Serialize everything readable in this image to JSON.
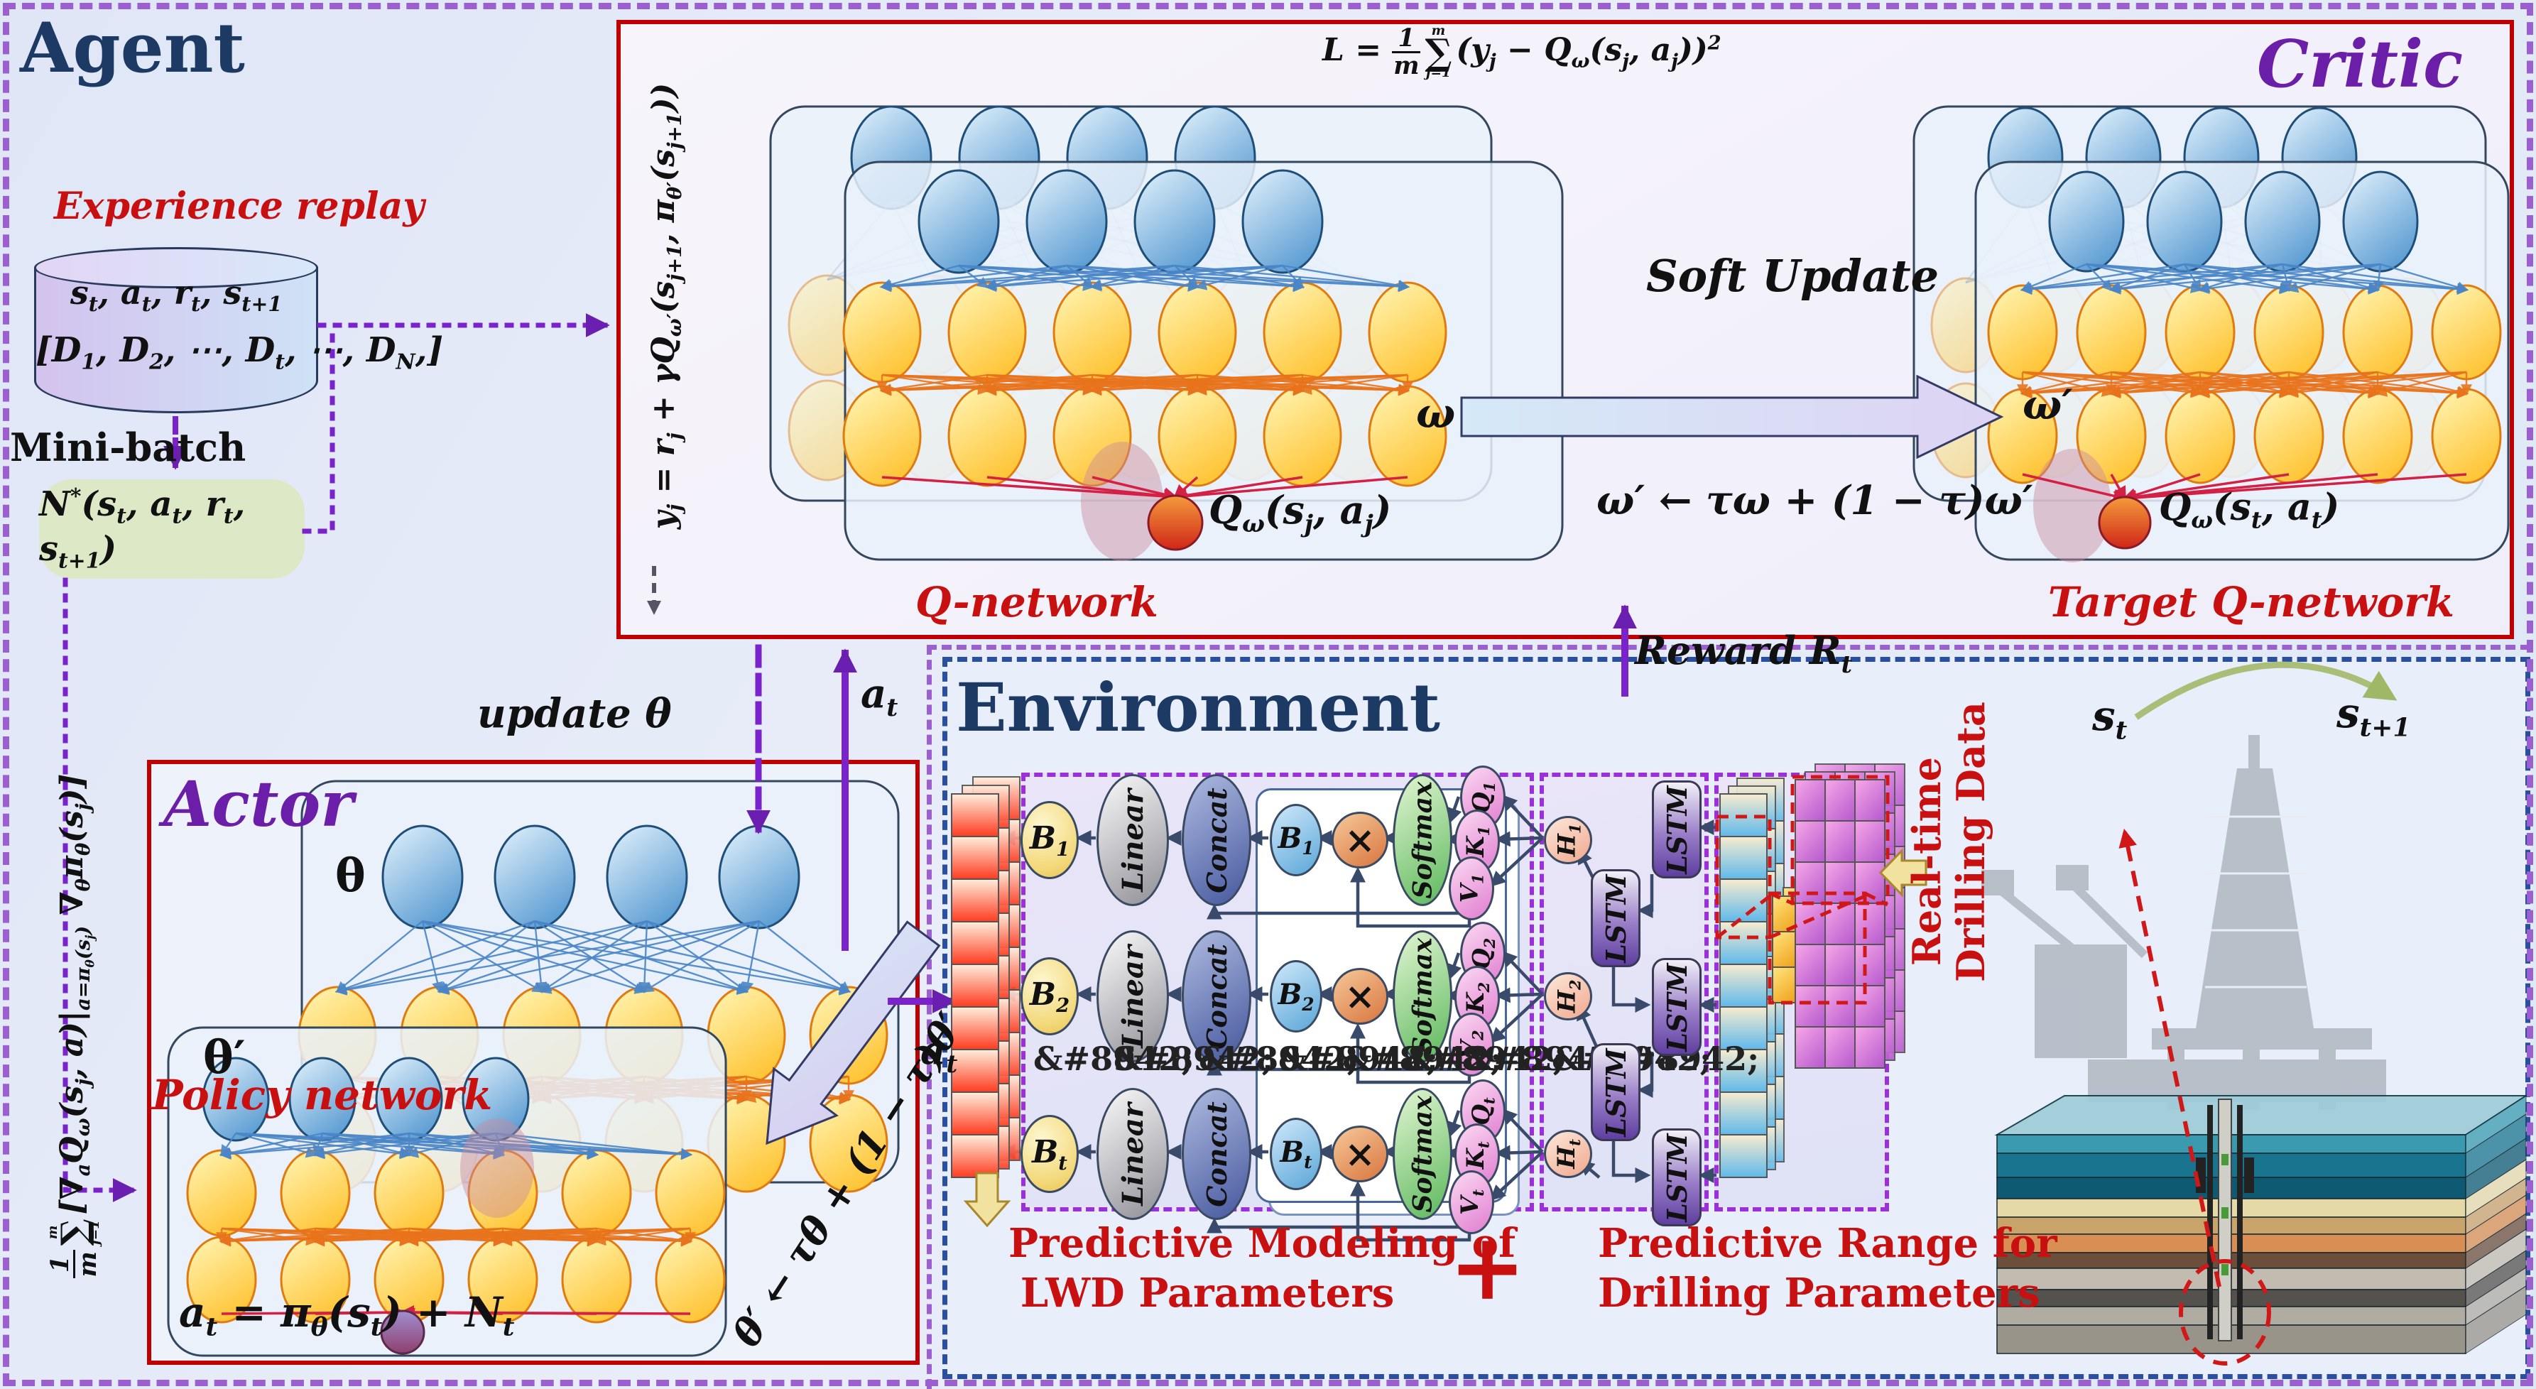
{
  "colors": {
    "red_accent": "#c00000",
    "red_text": "#c81010",
    "purple_title": "#6b1fa8",
    "navy_title": "#1c3a63",
    "purple_dash": "#9b5fd0",
    "blue_dash": "#2a4fa0",
    "green_box": "#dde9c6"
  },
  "agent": {
    "title": "Agent",
    "gradient_formula": "<span class='frac'><span>1</span><span>m</span></span><span class='sum'><span class='lim'>m</span><span class='sig'>&#8721;</span><span class='lim'>j=1</span></span>[&#8711;<sub>a</sub>Q<sub>&#969;</sub>(s<sub>j</sub>, a)|<sub>a=&#960;<sub>&#952;</sub>(s<sub>j</sub>)</sub> &#8711;<sub>&#952;</sub>&#960;<sub>&#952;</sub>(s<sub>j</sub>)]"
  },
  "experience_replay": {
    "label": "Experience replay",
    "tuple": "s<sub>t</sub>, a<sub>t</sub>, r<sub>t</sub>, s<sub>t+1</sub>",
    "buffer": "[D<sub>1</sub>, D<sub>2</sub>, &#8943;, D<sub>t</sub>, &#8943;, D<sub>N</sub>,]",
    "minibatch_label": "Mini-batch",
    "minibatch": "N<sup>*</sup>(s<sub>t</sub>, a<sub>t</sub>, r<sub>t</sub>, s<sub>t+1</sub>)"
  },
  "critic": {
    "title": "Critic",
    "loss_formula": "L = <span class='frac'><span>1</span><span>m</span></span><span class='sum'><span class='lim'>m</span><span class='sig'>&#8721;</span><span class='lim'>j=1</span></span>(y<sub>j</sub> &#8722; Q<sub>&#969;</sub>(s<sub>j</sub>, a<sub>j</sub>))<sup>2</sup>",
    "td_target_formula": "y<sub>j</sub> = r<sub>j</sub> + &#947;Q<sub>&#969;&#8242;</sub>(s<sub>j+1</sub>, &#960;<sub>&#952;&#8242;</sub>(s<sub>j+1</sub>))",
    "q_network_label": "Q-network",
    "q_output": "Q<sub>&#969;</sub>(s<sub>j</sub>, a<sub>j</sub>)",
    "target_network_label": "Target Q-network",
    "target_output": "Q<sub>&#969;</sub>(s<sub>t</sub>, a<sub>t</sub>)",
    "soft_update_label": "Soft Update",
    "omega": "&#969;",
    "omega_prime": "&#969;&#8242;",
    "soft_update_formula": "&#969;&#8242; &#8592; &#964;&#969; + (1 &#8722; &#964;)&#969;&#8242;",
    "update_theta": "update &#952;",
    "action_label": "a<sub>t</sub>"
  },
  "actor": {
    "title": "Actor",
    "policy_network_label": "Policy network",
    "theta": "&#952;",
    "theta_prime": "&#952;&#8242;",
    "output_formula": "a<sub>t</sub> = &#960;<sub>&#952;</sub>(s<sub>t</sub>) + N<sub>t</sub>",
    "soft_update_rotated": "&#952;&#8242; &#8592; &#964;&#952; + (1 &#8722; &#964;)&#952;&#8242;",
    "action_out_label": "a<sub>t</sub>"
  },
  "environment": {
    "title": "Environment",
    "reward_label": "Reward R<sub>t</sub>",
    "times": "&#215;",
    "vdots": "&#8942;",
    "lstm_label": "LSTM",
    "rows": [
      {
        "b": "B<sub>1</sub>",
        "linear": "Linear",
        "concat": "Concat",
        "softmax": "Softmax",
        "q": "Q<sub>1</sub>",
        "k": "K<sub>1</sub>",
        "v": "V<sub>1</sub>",
        "h": "H<sub>1</sub>"
      },
      {
        "b": "B<sub>2</sub>",
        "linear": "Linear",
        "concat": "Concat",
        "softmax": "Softmax",
        "q": "Q<sub>2</sub>",
        "k": "K<sub>2</sub>",
        "v": "V<sub>2</sub>",
        "h": "H<sub>2</sub>"
      },
      {
        "b": "B<sub>t</sub>",
        "linear": "Linear",
        "concat": "Concat",
        "softmax": "Softmax",
        "q": "Q<sub>t</sub>",
        "k": "K<sub>t</sub>",
        "v": "V<sub>t</sub>",
        "h": "H<sub>t</sub>"
      }
    ],
    "caption_left": [
      "Predictive Modeling of",
      "LWD Parameters"
    ],
    "plus": "+",
    "caption_right": [
      "Predictive Range for",
      "Drilling Parameters"
    ],
    "realtime_label": [
      "Real-time",
      "Drilling Data"
    ],
    "state_current": "s<sub>t</sub>",
    "state_next": "s<sub>t+1</sub>"
  }
}
